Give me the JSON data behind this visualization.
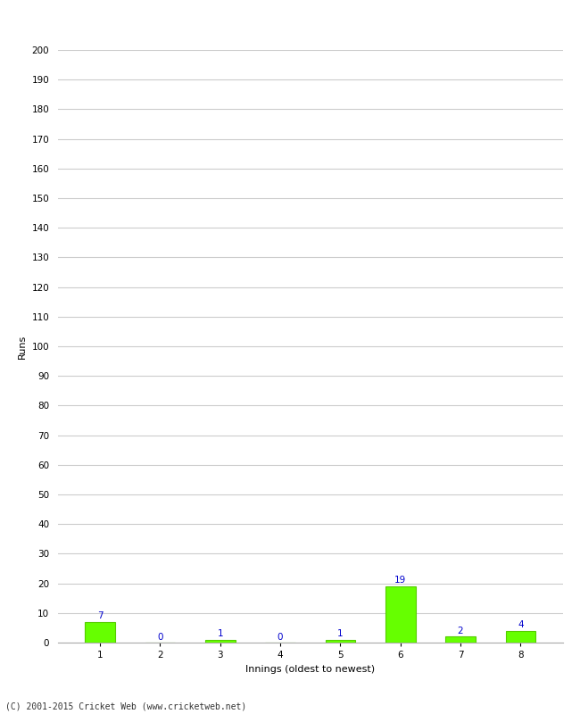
{
  "xlabel": "Innings (oldest to newest)",
  "ylabel": "Runs",
  "categories": [
    1,
    2,
    3,
    4,
    5,
    6,
    7,
    8
  ],
  "values": [
    7,
    0,
    1,
    0,
    1,
    19,
    2,
    4
  ],
  "bar_color": "#66ff00",
  "bar_edge_color": "#55cc00",
  "label_color": "#0000cc",
  "ylim": [
    0,
    200
  ],
  "yticks": [
    0,
    10,
    20,
    30,
    40,
    50,
    60,
    70,
    80,
    90,
    100,
    110,
    120,
    130,
    140,
    150,
    160,
    170,
    180,
    190,
    200
  ],
  "grid_color": "#cccccc",
  "bg_color": "#ffffff",
  "footer": "(C) 2001-2015 Cricket Web (www.cricketweb.net)",
  "label_fontsize": 7.5,
  "axis_label_fontsize": 8,
  "tick_fontsize": 7.5,
  "footer_fontsize": 7
}
